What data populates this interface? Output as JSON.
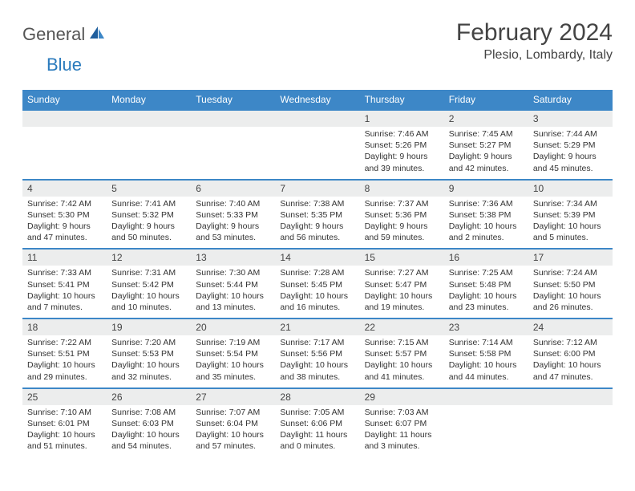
{
  "brand": {
    "part1": "General",
    "part2": "Blue"
  },
  "title": "February 2024",
  "location": "Plesio, Lombardy, Italy",
  "colors": {
    "header_bg": "#3d87c7",
    "header_text": "#ffffff",
    "daynum_bg": "#eceded",
    "text": "#333333",
    "border": "#3d87c7"
  },
  "weekdays": [
    "Sunday",
    "Monday",
    "Tuesday",
    "Wednesday",
    "Thursday",
    "Friday",
    "Saturday"
  ],
  "weeks": [
    [
      null,
      null,
      null,
      null,
      {
        "n": "1",
        "sr": "7:46 AM",
        "ss": "5:26 PM",
        "dl": "9 hours and 39 minutes."
      },
      {
        "n": "2",
        "sr": "7:45 AM",
        "ss": "5:27 PM",
        "dl": "9 hours and 42 minutes."
      },
      {
        "n": "3",
        "sr": "7:44 AM",
        "ss": "5:29 PM",
        "dl": "9 hours and 45 minutes."
      }
    ],
    [
      {
        "n": "4",
        "sr": "7:42 AM",
        "ss": "5:30 PM",
        "dl": "9 hours and 47 minutes."
      },
      {
        "n": "5",
        "sr": "7:41 AM",
        "ss": "5:32 PM",
        "dl": "9 hours and 50 minutes."
      },
      {
        "n": "6",
        "sr": "7:40 AM",
        "ss": "5:33 PM",
        "dl": "9 hours and 53 minutes."
      },
      {
        "n": "7",
        "sr": "7:38 AM",
        "ss": "5:35 PM",
        "dl": "9 hours and 56 minutes."
      },
      {
        "n": "8",
        "sr": "7:37 AM",
        "ss": "5:36 PM",
        "dl": "9 hours and 59 minutes."
      },
      {
        "n": "9",
        "sr": "7:36 AM",
        "ss": "5:38 PM",
        "dl": "10 hours and 2 minutes."
      },
      {
        "n": "10",
        "sr": "7:34 AM",
        "ss": "5:39 PM",
        "dl": "10 hours and 5 minutes."
      }
    ],
    [
      {
        "n": "11",
        "sr": "7:33 AM",
        "ss": "5:41 PM",
        "dl": "10 hours and 7 minutes."
      },
      {
        "n": "12",
        "sr": "7:31 AM",
        "ss": "5:42 PM",
        "dl": "10 hours and 10 minutes."
      },
      {
        "n": "13",
        "sr": "7:30 AM",
        "ss": "5:44 PM",
        "dl": "10 hours and 13 minutes."
      },
      {
        "n": "14",
        "sr": "7:28 AM",
        "ss": "5:45 PM",
        "dl": "10 hours and 16 minutes."
      },
      {
        "n": "15",
        "sr": "7:27 AM",
        "ss": "5:47 PM",
        "dl": "10 hours and 19 minutes."
      },
      {
        "n": "16",
        "sr": "7:25 AM",
        "ss": "5:48 PM",
        "dl": "10 hours and 23 minutes."
      },
      {
        "n": "17",
        "sr": "7:24 AM",
        "ss": "5:50 PM",
        "dl": "10 hours and 26 minutes."
      }
    ],
    [
      {
        "n": "18",
        "sr": "7:22 AM",
        "ss": "5:51 PM",
        "dl": "10 hours and 29 minutes."
      },
      {
        "n": "19",
        "sr": "7:20 AM",
        "ss": "5:53 PM",
        "dl": "10 hours and 32 minutes."
      },
      {
        "n": "20",
        "sr": "7:19 AM",
        "ss": "5:54 PM",
        "dl": "10 hours and 35 minutes."
      },
      {
        "n": "21",
        "sr": "7:17 AM",
        "ss": "5:56 PM",
        "dl": "10 hours and 38 minutes."
      },
      {
        "n": "22",
        "sr": "7:15 AM",
        "ss": "5:57 PM",
        "dl": "10 hours and 41 minutes."
      },
      {
        "n": "23",
        "sr": "7:14 AM",
        "ss": "5:58 PM",
        "dl": "10 hours and 44 minutes."
      },
      {
        "n": "24",
        "sr": "7:12 AM",
        "ss": "6:00 PM",
        "dl": "10 hours and 47 minutes."
      }
    ],
    [
      {
        "n": "25",
        "sr": "7:10 AM",
        "ss": "6:01 PM",
        "dl": "10 hours and 51 minutes."
      },
      {
        "n": "26",
        "sr": "7:08 AM",
        "ss": "6:03 PM",
        "dl": "10 hours and 54 minutes."
      },
      {
        "n": "27",
        "sr": "7:07 AM",
        "ss": "6:04 PM",
        "dl": "10 hours and 57 minutes."
      },
      {
        "n": "28",
        "sr": "7:05 AM",
        "ss": "6:06 PM",
        "dl": "11 hours and 0 minutes."
      },
      {
        "n": "29",
        "sr": "7:03 AM",
        "ss": "6:07 PM",
        "dl": "11 hours and 3 minutes."
      },
      null,
      null
    ]
  ],
  "labels": {
    "sunrise": "Sunrise:",
    "sunset": "Sunset:",
    "daylight": "Daylight:"
  }
}
